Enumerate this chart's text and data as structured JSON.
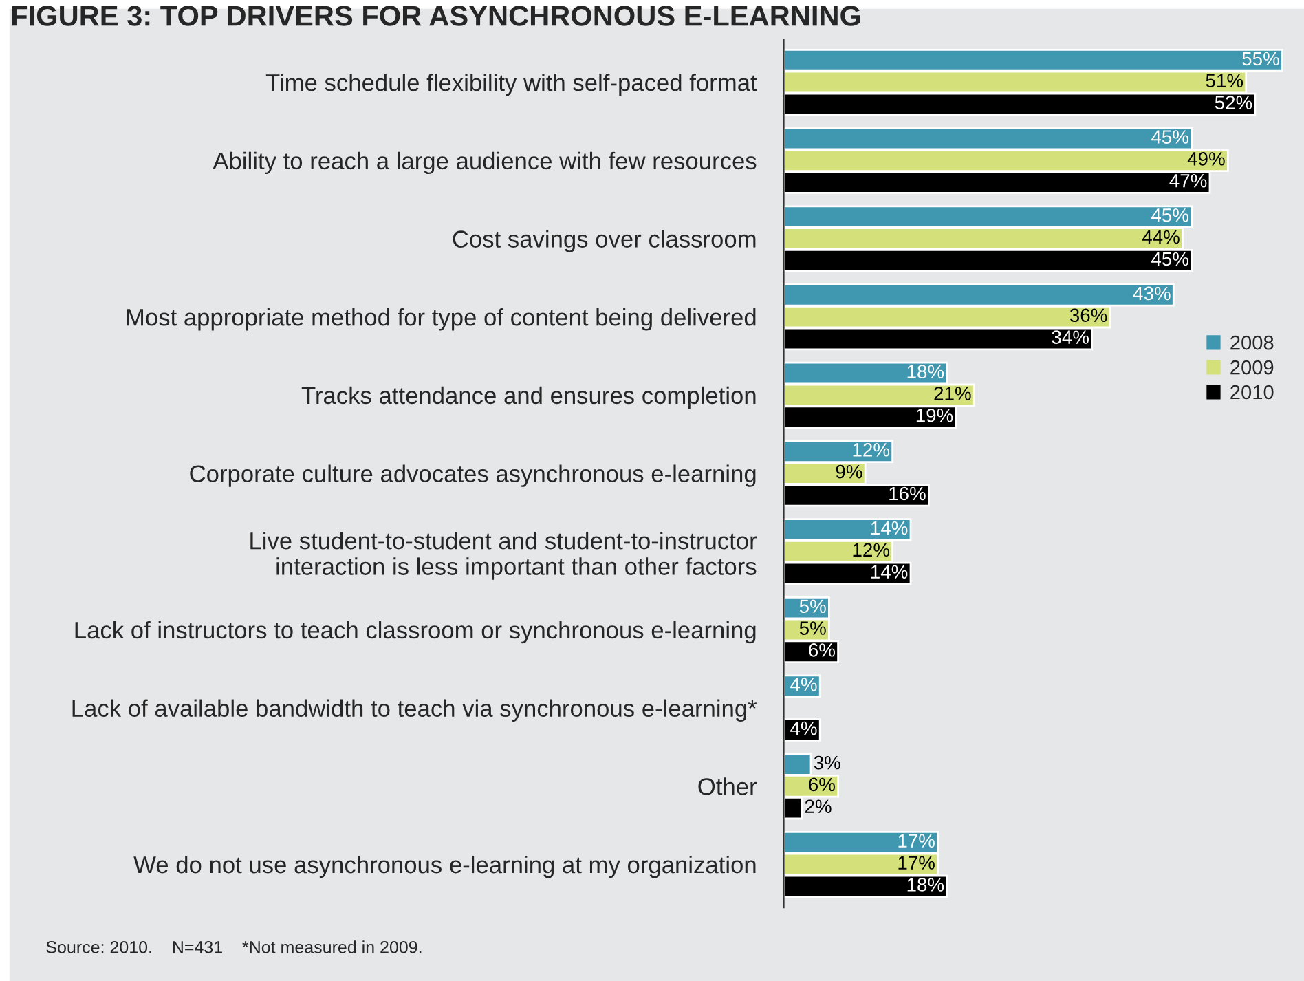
{
  "chart_data": {
    "type": "bar",
    "orientation": "horizontal",
    "title": "FIGURE 3: TOP DRIVERS FOR ASYNCHRONOUS E-LEARNING",
    "categories": [
      "Time schedule flexibility with self-paced format",
      "Ability to reach a large audience with few resources",
      "Cost savings over classroom",
      "Most appropriate method for type of content being delivered",
      "Tracks attendance and ensures completion",
      "Corporate culture advocates asynchronous e-learning",
      "Live student-to-student and student-to-instructor\ninteraction is less important than other factors",
      "Lack of instructors to teach classroom or synchronous e-learning",
      "Lack of available bandwidth to teach via synchronous e-learning*",
      "Other",
      "We do not use asynchronous e-learning at my organization"
    ],
    "series": [
      {
        "name": "2008",
        "color": "#3f97b0",
        "values": [
          55,
          45,
          45,
          43,
          18,
          12,
          14,
          5,
          4,
          3,
          17
        ],
        "value_labels": [
          "55%",
          "45%",
          "45%",
          "43%",
          "18%",
          "12%",
          "14%",
          "5%",
          "4%",
          "3%",
          "17%"
        ]
      },
      {
        "name": "2009",
        "color": "#d4e17a",
        "values": [
          51,
          49,
          44,
          36,
          21,
          9,
          12,
          5,
          null,
          6,
          17
        ],
        "value_labels": [
          "51%",
          "49%",
          "44%",
          "36%",
          "21%",
          "9%",
          "12%",
          "5%",
          null,
          "6%",
          "17%"
        ]
      },
      {
        "name": "2010",
        "color": "#000000",
        "values": [
          52,
          47,
          45,
          34,
          19,
          16,
          14,
          6,
          4,
          2,
          18
        ],
        "value_labels": [
          "52%",
          "47%",
          "45%",
          "34%",
          "19%",
          "16%",
          "14%",
          "6%",
          "4%",
          "2%",
          "18%"
        ]
      }
    ],
    "legend": "right",
    "grid": false,
    "annotations": [
      "Source: 2010.    N=431    *Not measured in 2009."
    ]
  }
}
